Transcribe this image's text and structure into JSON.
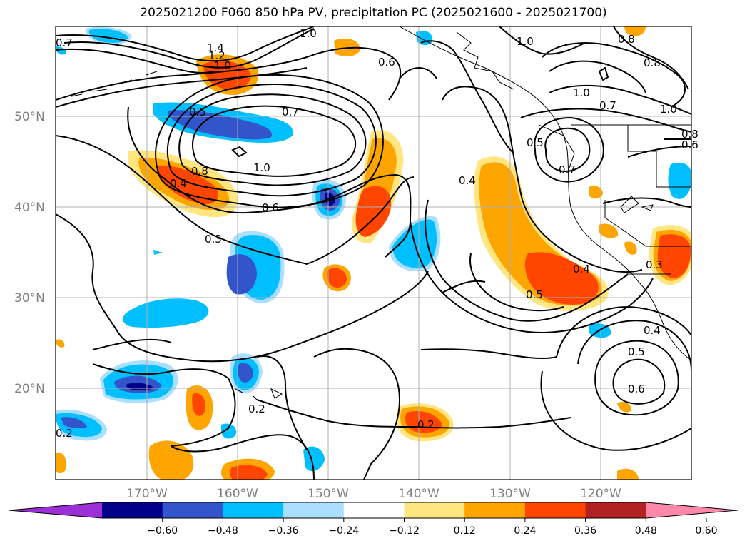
{
  "title": "2025021200 F060 850 hPa PV, precipitation PC (2025021600 - 2025021700)",
  "lat_labels": [
    "50°N",
    "40°N",
    "30°N",
    "20°N"
  ],
  "lon_labels": [
    "170°W",
    "160°W",
    "150°W",
    "140°W",
    "130°W",
    "120°W"
  ],
  "colorbar": {
    "ticks": [
      "−0.60",
      "−0.48",
      "−0.36",
      "−0.24",
      "−0.12",
      "0.12",
      "0.24",
      "0.36",
      "0.48",
      "0.60"
    ],
    "colors": [
      "#9b30d9",
      "#00008b",
      "#3355cc",
      "#00bfff",
      "#aadfff",
      "#ffffff",
      "#ffe680",
      "#ffa500",
      "#ff4500",
      "#b22222",
      "#ff88aa"
    ]
  },
  "contour_labels": [
    "0.7",
    "1.4",
    "1.2",
    "1.0",
    "1.0",
    "0.6",
    "1.0",
    "0.8",
    "0.8",
    "0.5",
    "0.7",
    "1.0",
    "0.7",
    "1.0",
    "0.8",
    "0.6",
    "0.5",
    "0.7",
    "0.8",
    "0.4",
    "1.0",
    "0.6",
    "0.4",
    "0.3",
    "0.4",
    "0.5",
    "0.3",
    "0.4",
    "0.5",
    "0.6",
    "0.2",
    "0.2",
    "0.2"
  ]
}
